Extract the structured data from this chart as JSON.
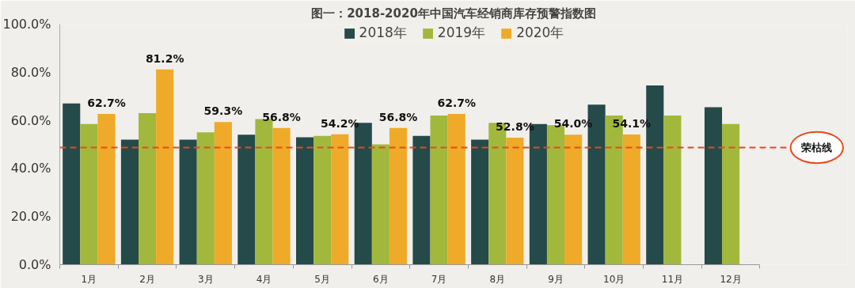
{
  "chart_data": {
    "type": "bar",
    "title": "图一：2018-2020年中国汽车经销商库存预警指数图",
    "categories": [
      "1月",
      "2月",
      "3月",
      "4月",
      "5月",
      "6月",
      "7月",
      "8月",
      "9月",
      "10月",
      "11月",
      "12月"
    ],
    "series": [
      {
        "name": "2018年",
        "color": "#254a4a",
        "values": [
          67,
          52,
          52,
          54,
          53,
          59,
          53.5,
          52,
          58.5,
          66.5,
          74.5,
          65.5
        ]
      },
      {
        "name": "2019年",
        "color": "#a2b83c",
        "values": [
          58.5,
          63,
          55,
          60.5,
          53.5,
          50,
          62,
          59,
          58,
          62,
          62,
          58.5
        ]
      },
      {
        "name": "2020年",
        "color": "#eeaa28",
        "values": [
          62.7,
          81.2,
          59.3,
          56.8,
          54.2,
          56.8,
          62.7,
          52.8,
          54.0,
          54.1,
          null,
          null
        ],
        "value_labels": [
          "62.7%",
          "81.2%",
          "59.3%",
          "56.8%",
          "54.2%",
          "56.8%",
          "62.7%",
          "52.8%",
          "54.0%",
          "54.1%",
          null,
          null
        ]
      }
    ],
    "ylim": [
      0,
      100
    ],
    "yticks": [
      {
        "value": 0,
        "label": "0.0%"
      },
      {
        "value": 20,
        "label": "20.0%"
      },
      {
        "value": 40,
        "label": "40.0%"
      },
      {
        "value": 60,
        "label": "60.0%"
      },
      {
        "value": 80,
        "label": "80.0%"
      },
      {
        "value": 100,
        "label": "100.0%"
      }
    ],
    "ref_lines": [
      {
        "axis": "y",
        "value": 48.7,
        "label": "荣枯线",
        "color": "#e8491d",
        "line_style": "dashed"
      }
    ],
    "legend": "top",
    "grid": false
  }
}
